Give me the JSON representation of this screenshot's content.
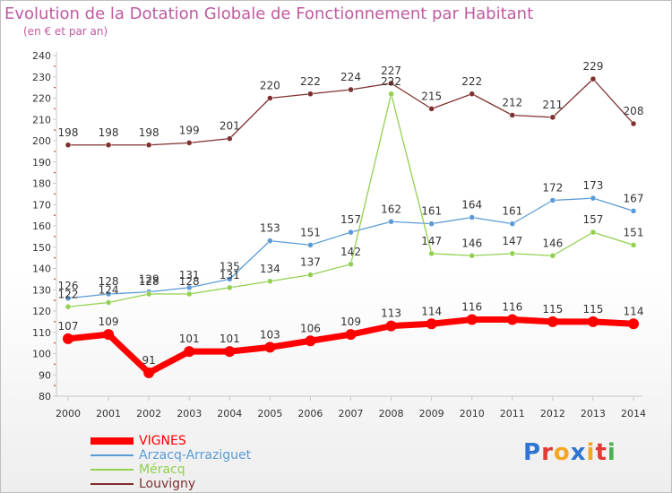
{
  "title": "Evolution de la Dotation Globale de Fonctionnement par Habitant",
  "subtitle": "(en € et par an)",
  "logo_text": "Proxiti",
  "chart_data": {
    "type": "line",
    "title": "Evolution de la Dotation Globale de Fonctionnement par Habitant",
    "subtitle": "(en € et par an)",
    "xlabel": "",
    "ylabel": "",
    "ylim": [
      80,
      240
    ],
    "ytick_step": 10,
    "grid": false,
    "legend_position": "bottom-left",
    "x": [
      "2000",
      "2001",
      "2002",
      "2003",
      "2004",
      "2005",
      "2006",
      "2007",
      "2008",
      "2009",
      "2010",
      "2011",
      "2012",
      "2013",
      "2014"
    ],
    "series": [
      {
        "name": "VIGNES",
        "color": "#ff0000",
        "values": [
          107,
          109,
          91,
          101,
          101,
          103,
          106,
          109,
          113,
          114,
          116,
          116,
          115,
          115,
          114
        ]
      },
      {
        "name": "Arzacq-Arraziguet",
        "color": "#5b9bd5",
        "values": [
          126,
          128,
          129,
          131,
          135,
          153,
          151,
          157,
          162,
          161,
          164,
          161,
          172,
          173,
          167
        ]
      },
      {
        "name": "Méracq",
        "color": "#92d050",
        "values": [
          122,
          124,
          128,
          128,
          131,
          134,
          137,
          142,
          222,
          147,
          146,
          147,
          146,
          157,
          151
        ]
      },
      {
        "name": "Louvigny",
        "color": "#7f2f2f",
        "values": [
          198,
          198,
          198,
          199,
          201,
          220,
          222,
          224,
          227,
          215,
          222,
          212,
          211,
          229,
          208
        ]
      }
    ]
  }
}
